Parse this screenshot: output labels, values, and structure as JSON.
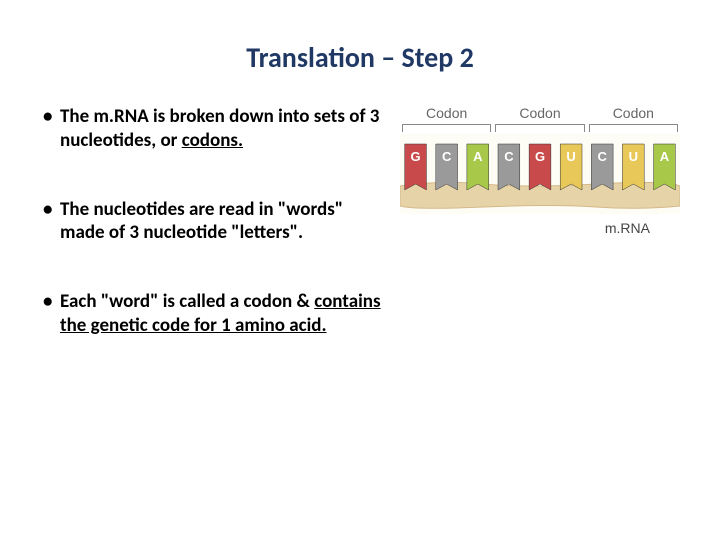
{
  "title": "Translation – Step 2",
  "bullets": [
    {
      "pre": "The m.RNA is broken down into sets of 3 nucleotides, or ",
      "u": "codons.",
      "post": ""
    },
    {
      "pre": "The nucleotides are read in \"words\" made of 3 nucleotide \"letters\".",
      "u": "",
      "post": ""
    },
    {
      "pre": "Each \"word\" is called a codon & ",
      "u": "contains the genetic code for 1 amino acid.",
      "post": ""
    }
  ],
  "diagram": {
    "codon_label": "Codon",
    "mrna_label": "m.RNA",
    "nucleotides": [
      "G",
      "C",
      "A",
      "C",
      "G",
      "U",
      "C",
      "U",
      "A"
    ],
    "colors": {
      "G": "#c94a4a",
      "C": "#9a9a9a",
      "A": "#a8c84a",
      "U": "#e8c858"
    },
    "strand_top": "#d4b888",
    "strand_bottom": "#e6d4a8",
    "background": "#fefdf5",
    "bracket_color": "#888888",
    "label_color": "#666666",
    "label_fontsize": 14,
    "nuc_text_color": "#ffffff"
  }
}
